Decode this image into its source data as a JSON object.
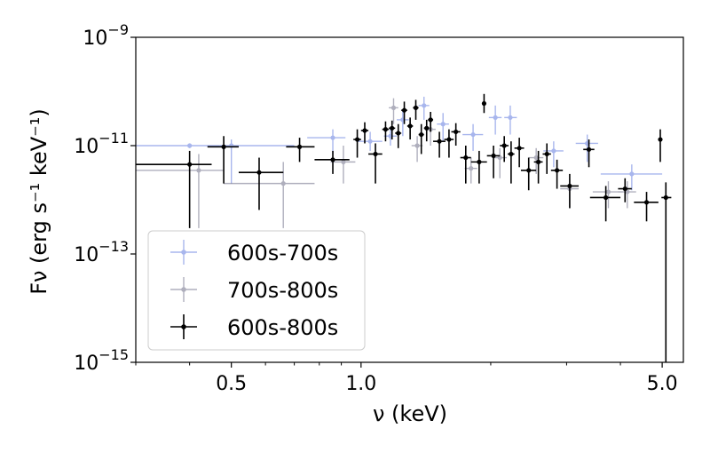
{
  "chart_data": {
    "type": "scatter",
    "title": "",
    "xlabel": "ν (keV)",
    "ylabel": "Fν (erg s⁻¹ keV⁻¹)",
    "xscale": "log",
    "yscale": "log",
    "xlim": [
      0.3,
      5.6
    ],
    "ylim": [
      1e-15,
      1e-09
    ],
    "x_ticks": [
      {
        "value": 0.5,
        "label": "0.5"
      },
      {
        "value": 1.0,
        "label": "1.0"
      },
      {
        "value": 5.0,
        "label": "5.0"
      }
    ],
    "y_ticks": [
      {
        "value": 1e-15,
        "base": "10",
        "exp": "−15"
      },
      {
        "value": 1e-13,
        "base": "10",
        "exp": "−13"
      },
      {
        "value": 1e-11,
        "base": "10",
        "exp": "−11"
      },
      {
        "value": 1e-09,
        "base": "10",
        "exp": "−9"
      }
    ],
    "grid": false,
    "legend_position": "lower-left",
    "series": [
      {
        "name": "600s-700s",
        "color": "#8c9ee8",
        "opacity": 0.75,
        "points": [
          {
            "x": 0.4,
            "xlo": 0.3,
            "xhi": 0.47,
            "y": 1e-11,
            "ylo": 9e-12,
            "yhi": 1.1e-11
          },
          {
            "x": 0.5,
            "xlo": 0.47,
            "xhi": 0.7,
            "y": 1e-11,
            "ylo": 2e-12,
            "yhi": 1.3e-11
          },
          {
            "x": 0.86,
            "xlo": 0.75,
            "xhi": 0.92,
            "y": 1.4e-11,
            "ylo": 7e-12,
            "yhi": 2e-11
          },
          {
            "x": 1.05,
            "xlo": 0.98,
            "xhi": 1.12,
            "y": 1.2e-11,
            "ylo": 8e-12,
            "yhi": 1.8e-11
          },
          {
            "x": 1.17,
            "xlo": 1.13,
            "xhi": 1.21,
            "y": 1.5e-11,
            "ylo": 1e-11,
            "yhi": 2.1e-11
          },
          {
            "x": 1.25,
            "xlo": 1.21,
            "xhi": 1.29,
            "y": 3e-11,
            "ylo": 1.5e-11,
            "yhi": 4.5e-11
          },
          {
            "x": 1.4,
            "xlo": 1.36,
            "xhi": 1.44,
            "y": 5.5e-11,
            "ylo": 3e-11,
            "yhi": 8e-11
          },
          {
            "x": 1.55,
            "xlo": 1.5,
            "xhi": 1.6,
            "y": 2.5e-11,
            "ylo": 1.2e-11,
            "yhi": 4e-11
          },
          {
            "x": 1.82,
            "xlo": 1.72,
            "xhi": 1.92,
            "y": 1.6e-11,
            "ylo": 8e-12,
            "yhi": 2.5e-11
          },
          {
            "x": 2.05,
            "xlo": 1.98,
            "xhi": 2.12,
            "y": 3.3e-11,
            "ylo": 1.6e-11,
            "yhi": 5.5e-11
          },
          {
            "x": 2.22,
            "xlo": 2.15,
            "xhi": 2.3,
            "y": 3.3e-11,
            "ylo": 1.6e-11,
            "yhi": 5.5e-11
          },
          {
            "x": 2.8,
            "xlo": 2.65,
            "xhi": 2.95,
            "y": 8e-12,
            "ylo": 4e-12,
            "yhi": 1.2e-11
          },
          {
            "x": 3.35,
            "xlo": 3.15,
            "xhi": 3.55,
            "y": 1.1e-11,
            "ylo": 5e-12,
            "yhi": 1.6e-11
          },
          {
            "x": 4.25,
            "xlo": 3.6,
            "xhi": 5.0,
            "y": 3e-12,
            "ylo": 1.5e-12,
            "yhi": 4.5e-12
          }
        ]
      },
      {
        "name": "700s-800s",
        "color": "#6e6e88",
        "opacity": 0.55,
        "points": [
          {
            "x": 0.42,
            "xlo": 0.3,
            "xhi": 0.48,
            "y": 3.5e-12,
            "ylo": 3e-13,
            "yhi": 7e-12
          },
          {
            "x": 0.66,
            "xlo": 0.48,
            "xhi": 0.78,
            "y": 2e-12,
            "ylo": 3e-13,
            "yhi": 5e-12
          },
          {
            "x": 0.91,
            "xlo": 0.85,
            "xhi": 0.97,
            "y": 5e-12,
            "ylo": 2e-12,
            "yhi": 1e-11
          },
          {
            "x": 1.19,
            "xlo": 1.16,
            "xhi": 1.22,
            "y": 5e-11,
            "ylo": 2.5e-11,
            "yhi": 7.5e-11
          },
          {
            "x": 1.35,
            "xlo": 1.31,
            "xhi": 1.39,
            "y": 1e-11,
            "ylo": 5e-12,
            "yhi": 1.5e-11
          },
          {
            "x": 1.45,
            "xlo": 1.41,
            "xhi": 1.49,
            "y": 2e-11,
            "ylo": 1e-11,
            "yhi": 3e-11
          },
          {
            "x": 1.8,
            "xlo": 1.74,
            "xhi": 1.86,
            "y": 3.8e-12,
            "ylo": 2e-12,
            "yhi": 6e-12
          },
          {
            "x": 2.1,
            "xlo": 2.02,
            "xhi": 2.18,
            "y": 6e-12,
            "ylo": 2.5e-12,
            "yhi": 9e-12
          },
          {
            "x": 2.55,
            "xlo": 2.45,
            "xhi": 2.65,
            "y": 6e-12,
            "ylo": 3e-12,
            "yhi": 9e-12
          },
          {
            "x": 3.05,
            "xlo": 2.9,
            "xhi": 3.2,
            "y": 1.6e-12,
            "ylo": 7e-13,
            "yhi": 2.4e-12
          },
          {
            "x": 3.75,
            "xlo": 3.45,
            "xhi": 4.05,
            "y": 1.4e-12,
            "ylo": 7e-13,
            "yhi": 2.2e-12
          },
          {
            "x": 4.15,
            "xlo": 3.95,
            "xhi": 4.35,
            "y": 1.4e-12,
            "ylo": 7e-13,
            "yhi": 2.2e-12
          }
        ]
      },
      {
        "name": "600s-800s",
        "color": "#000000",
        "opacity": 1,
        "points": [
          {
            "x": 0.4,
            "xlo": 0.3,
            "xhi": 0.45,
            "y": 4.5e-12,
            "ylo": 3e-13,
            "yhi": 8e-12
          },
          {
            "x": 0.48,
            "xlo": 0.44,
            "xhi": 0.52,
            "y": 9.5e-12,
            "ylo": 2e-12,
            "yhi": 1.5e-11
          },
          {
            "x": 0.58,
            "xlo": 0.52,
            "xhi": 0.66,
            "y": 3.2e-12,
            "ylo": 6.5e-13,
            "yhi": 6e-12
          },
          {
            "x": 0.72,
            "xlo": 0.67,
            "xhi": 0.78,
            "y": 9.5e-12,
            "ylo": 5e-12,
            "yhi": 1.4e-11
          },
          {
            "x": 0.86,
            "xlo": 0.78,
            "xhi": 0.94,
            "y": 5.5e-12,
            "ylo": 3e-12,
            "yhi": 8e-12
          },
          {
            "x": 0.98,
            "xlo": 0.96,
            "xhi": 1.0,
            "y": 1.3e-11,
            "ylo": 6e-12,
            "yhi": 2e-11
          },
          {
            "x": 1.02,
            "xlo": 1.0,
            "xhi": 1.04,
            "y": 1.9e-11,
            "ylo": 1.1e-11,
            "yhi": 2.7e-11
          },
          {
            "x": 1.08,
            "xlo": 1.04,
            "xhi": 1.12,
            "y": 7e-12,
            "ylo": 2e-12,
            "yhi": 1.1e-11
          },
          {
            "x": 1.14,
            "xlo": 1.12,
            "xhi": 1.16,
            "y": 2e-11,
            "ylo": 1.2e-11,
            "yhi": 2.8e-11
          },
          {
            "x": 1.18,
            "xlo": 1.16,
            "xhi": 1.2,
            "y": 2.1e-11,
            "ylo": 1.3e-11,
            "yhi": 2.9e-11
          },
          {
            "x": 1.22,
            "xlo": 1.2,
            "xhi": 1.24,
            "y": 1.7e-11,
            "ylo": 9e-12,
            "yhi": 2.5e-11
          },
          {
            "x": 1.26,
            "xlo": 1.24,
            "xhi": 1.28,
            "y": 4.5e-11,
            "ylo": 2.5e-11,
            "yhi": 6.5e-11
          },
          {
            "x": 1.3,
            "xlo": 1.28,
            "xhi": 1.32,
            "y": 2.3e-11,
            "ylo": 1.3e-11,
            "yhi": 3.3e-11
          },
          {
            "x": 1.34,
            "xlo": 1.32,
            "xhi": 1.36,
            "y": 5e-11,
            "ylo": 3e-11,
            "yhi": 7e-11
          },
          {
            "x": 1.38,
            "xlo": 1.36,
            "xhi": 1.4,
            "y": 1.6e-11,
            "ylo": 7e-12,
            "yhi": 2.5e-11
          },
          {
            "x": 1.42,
            "xlo": 1.4,
            "xhi": 1.44,
            "y": 2.1e-11,
            "ylo": 1.2e-11,
            "yhi": 3e-11
          },
          {
            "x": 1.45,
            "xlo": 1.43,
            "xhi": 1.47,
            "y": 3e-11,
            "ylo": 1.8e-11,
            "yhi": 4.2e-11
          },
          {
            "x": 1.52,
            "xlo": 1.47,
            "xhi": 1.57,
            "y": 1.2e-11,
            "ylo": 6e-12,
            "yhi": 1.8e-11
          },
          {
            "x": 1.6,
            "xlo": 1.56,
            "xhi": 1.64,
            "y": 1.3e-11,
            "ylo": 6e-12,
            "yhi": 2e-11
          },
          {
            "x": 1.66,
            "xlo": 1.62,
            "xhi": 1.7,
            "y": 1.8e-11,
            "ylo": 1e-11,
            "yhi": 2.6e-11
          },
          {
            "x": 1.75,
            "xlo": 1.7,
            "xhi": 1.8,
            "y": 6e-12,
            "ylo": 2e-12,
            "yhi": 1e-11
          },
          {
            "x": 1.88,
            "xlo": 1.8,
            "xhi": 1.96,
            "y": 5e-12,
            "ylo": 2e-12,
            "yhi": 8e-12
          },
          {
            "x": 1.93,
            "xlo": 1.91,
            "xhi": 1.95,
            "y": 6e-11,
            "ylo": 4e-11,
            "yhi": 9e-11
          },
          {
            "x": 2.03,
            "xlo": 1.96,
            "xhi": 2.1,
            "y": 6.5e-12,
            "ylo": 2.5e-12,
            "yhi": 1e-11
          },
          {
            "x": 2.15,
            "xlo": 2.1,
            "xhi": 2.2,
            "y": 1e-11,
            "ylo": 5e-12,
            "yhi": 1.5e-11
          },
          {
            "x": 2.23,
            "xlo": 2.19,
            "xhi": 2.27,
            "y": 7e-12,
            "ylo": 2e-12,
            "yhi": 1.2e-11
          },
          {
            "x": 2.33,
            "xlo": 2.27,
            "xhi": 2.39,
            "y": 9e-12,
            "ylo": 4e-12,
            "yhi": 1.4e-11
          },
          {
            "x": 2.45,
            "xlo": 2.35,
            "xhi": 2.55,
            "y": 3.5e-12,
            "ylo": 1.5e-12,
            "yhi": 6e-12
          },
          {
            "x": 2.58,
            "xlo": 2.52,
            "xhi": 2.64,
            "y": 5e-12,
            "ylo": 2e-12,
            "yhi": 8e-12
          },
          {
            "x": 2.7,
            "xlo": 2.64,
            "xhi": 2.76,
            "y": 7e-12,
            "ylo": 3e-12,
            "yhi": 1.1e-11
          },
          {
            "x": 2.85,
            "xlo": 2.76,
            "xhi": 2.94,
            "y": 3.5e-12,
            "ylo": 1.6e-12,
            "yhi": 5.5e-12
          },
          {
            "x": 3.05,
            "xlo": 2.9,
            "xhi": 3.2,
            "y": 1.8e-12,
            "ylo": 7e-13,
            "yhi": 3e-12
          },
          {
            "x": 3.38,
            "xlo": 3.28,
            "xhi": 3.48,
            "y": 8.5e-12,
            "ylo": 4e-12,
            "yhi": 1.3e-11
          },
          {
            "x": 3.7,
            "xlo": 3.4,
            "xhi": 4.0,
            "y": 1.1e-12,
            "ylo": 4e-13,
            "yhi": 1.8e-12
          },
          {
            "x": 4.1,
            "xlo": 3.95,
            "xhi": 4.25,
            "y": 1.6e-12,
            "ylo": 9e-13,
            "yhi": 2.5e-12
          },
          {
            "x": 4.6,
            "xlo": 4.3,
            "xhi": 4.9,
            "y": 9e-13,
            "ylo": 4e-13,
            "yhi": 1.4e-12
          },
          {
            "x": 4.95,
            "xlo": 4.92,
            "xhi": 4.98,
            "y": 1.3e-11,
            "ylo": 5e-12,
            "yhi": 2e-11
          },
          {
            "x": 5.1,
            "xlo": 4.98,
            "xhi": 5.25,
            "y": 1.1e-12,
            "ylo": 1e-15,
            "yhi": 2.1e-12
          }
        ]
      }
    ]
  }
}
